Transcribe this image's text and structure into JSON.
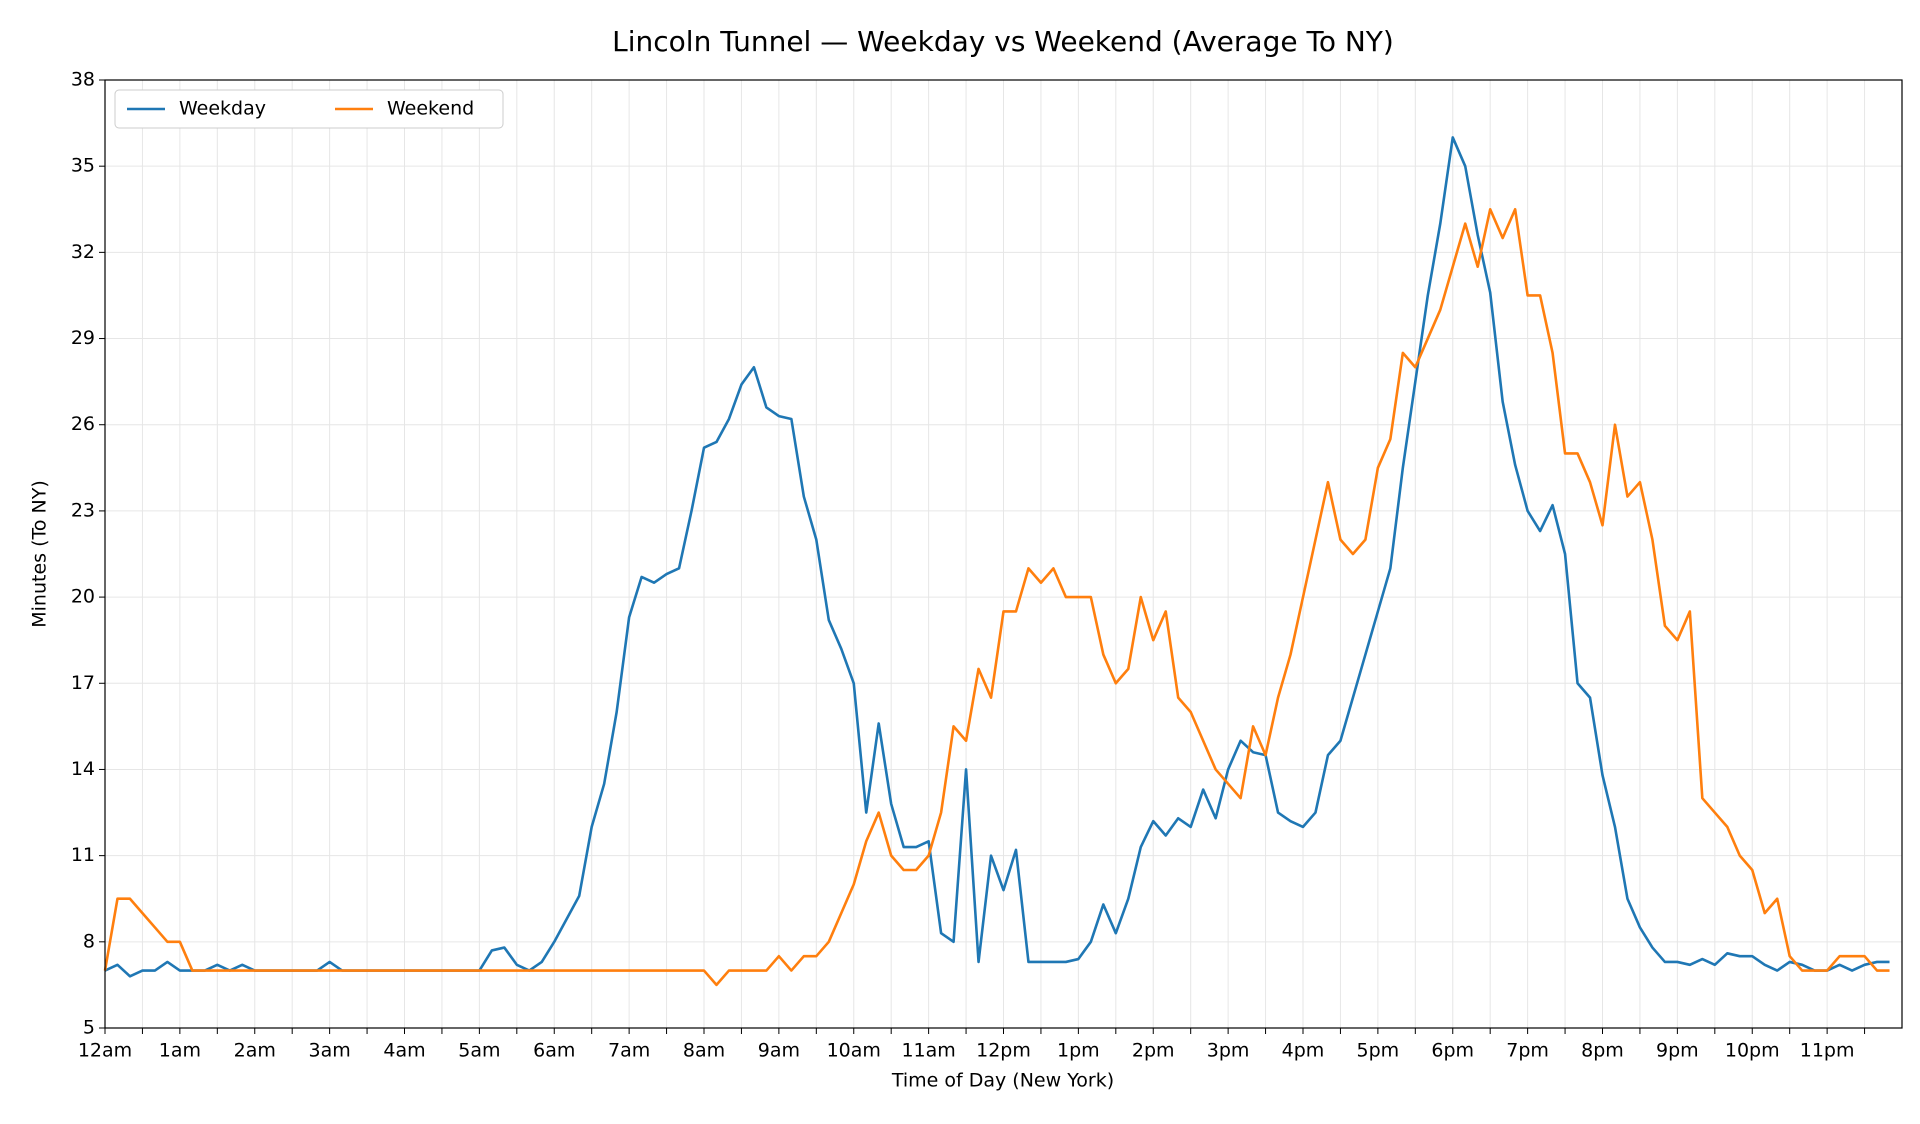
{
  "chart_data": {
    "type": "line",
    "title": "Lincoln Tunnel — Weekday vs Weekend (Average To NY)",
    "x_label": "Time of Day (New York)",
    "y_label": "Minutes (To NY)",
    "x": [
      0,
      10,
      20,
      30,
      40,
      50,
      60,
      70,
      80,
      90,
      100,
      110,
      120,
      130,
      140,
      150,
      160,
      170,
      180,
      190,
      200,
      210,
      220,
      230,
      240,
      250,
      260,
      270,
      280,
      290,
      300,
      310,
      320,
      330,
      340,
      350,
      360,
      370,
      380,
      390,
      400,
      410,
      420,
      430,
      440,
      450,
      460,
      470,
      480,
      490,
      500,
      510,
      520,
      530,
      540,
      550,
      560,
      570,
      580,
      590,
      600,
      610,
      620,
      630,
      640,
      650,
      660,
      670,
      680,
      690,
      700,
      710,
      720,
      730,
      740,
      750,
      760,
      770,
      780,
      790,
      800,
      810,
      820,
      830,
      840,
      850,
      860,
      870,
      880,
      890,
      900,
      910,
      920,
      930,
      940,
      950,
      960,
      970,
      980,
      990,
      1000,
      1010,
      1020,
      1030,
      1040,
      1050,
      1060,
      1070,
      1080,
      1090,
      1100,
      1110,
      1120,
      1130,
      1140,
      1150,
      1160,
      1170,
      1180,
      1190,
      1200,
      1210,
      1220,
      1230,
      1240,
      1250,
      1260,
      1270,
      1280,
      1290,
      1300,
      1310,
      1320,
      1330,
      1340,
      1350,
      1360,
      1370,
      1380,
      1390,
      1400,
      1410,
      1420,
      1430
    ],
    "series": [
      {
        "name": "Weekday",
        "color": "#1f77b4",
        "values": [
          7,
          7.2,
          6.8,
          7,
          7,
          7.3,
          7,
          7,
          7,
          7.2,
          7,
          7.2,
          7,
          7,
          7,
          7,
          7,
          7,
          7.3,
          7,
          7,
          7,
          7,
          7,
          7,
          7,
          7,
          7,
          7,
          7,
          7,
          7.7,
          7.8,
          7.2,
          7,
          7.3,
          8,
          8.8,
          9.6,
          12,
          13.5,
          16,
          19.3,
          20.7,
          20.5,
          20.8,
          21,
          23,
          25.2,
          25.4,
          26.2,
          27.4,
          28,
          26.6,
          26.3,
          26.2,
          23.5,
          22,
          19.2,
          18.2,
          17,
          12.5,
          15.6,
          12.8,
          11.3,
          11.3,
          11.5,
          8.3,
          8,
          14,
          7.3,
          11,
          9.8,
          11.2,
          7.3,
          7.3,
          7.3,
          7.3,
          7.4,
          8,
          9.3,
          8.3,
          9.5,
          11.3,
          12.2,
          11.7,
          12.3,
          12,
          13.3,
          12.3,
          14,
          15,
          14.6,
          14.5,
          12.5,
          12.2,
          12,
          12.5,
          14.5,
          15,
          16.5,
          18,
          19.5,
          21,
          24.5,
          27.5,
          30.5,
          33,
          36,
          35,
          32.6,
          30.6,
          26.8,
          24.6,
          23,
          22.3,
          23.2,
          21.5,
          17,
          16.5,
          13.8,
          12,
          9.5,
          8.5,
          7.8,
          7.3,
          7.3,
          7.2,
          7.4,
          7.2,
          7.6,
          7.5,
          7.5,
          7.2,
          7,
          7.3,
          7.2,
          7,
          7,
          7.2,
          7,
          7.2,
          7.3,
          7.3
        ]
      },
      {
        "name": "Weekend",
        "color": "#ff7f0e",
        "values": [
          7,
          9.5,
          9.5,
          9,
          8.5,
          8,
          8,
          7,
          7,
          7,
          7,
          7,
          7,
          7,
          7,
          7,
          7,
          7,
          7,
          7,
          7,
          7,
          7,
          7,
          7,
          7,
          7,
          7,
          7,
          7,
          7,
          7,
          7,
          7,
          7,
          7,
          7,
          7,
          7,
          7,
          7,
          7,
          7,
          7,
          7,
          7,
          7,
          7,
          7,
          6.5,
          7,
          7,
          7,
          7,
          7.5,
          7,
          7.5,
          7.5,
          8,
          9,
          10,
          11.5,
          12.5,
          11,
          10.5,
          10.5,
          11,
          12.5,
          15.5,
          15,
          17.5,
          16.5,
          19.5,
          19.5,
          21,
          20.5,
          21,
          20,
          20,
          20,
          18,
          17,
          17.5,
          20,
          18.5,
          19.5,
          16.5,
          16,
          15,
          14,
          13.5,
          13,
          15.5,
          14.5,
          16.5,
          18,
          20,
          22,
          24,
          22,
          21.5,
          22,
          24.5,
          25.5,
          28.5,
          28,
          29,
          30,
          31.5,
          33,
          31.5,
          33.5,
          32.5,
          33.5,
          30.5,
          30.5,
          28.5,
          25,
          25,
          24,
          22.5,
          26,
          23.5,
          24,
          22,
          19,
          18.5,
          19.5,
          13,
          12.5,
          12,
          11,
          10.5,
          9,
          9.5,
          7.5,
          7,
          7,
          7,
          7.5,
          7.5,
          7.5,
          7,
          7
        ]
      }
    ],
    "xlim": [
      0,
      1440
    ],
    "xticks": [
      {
        "value": 0,
        "label": "12am"
      },
      {
        "value": 60,
        "label": "1am"
      },
      {
        "value": 120,
        "label": "2am"
      },
      {
        "value": 180,
        "label": "3am"
      },
      {
        "value": 240,
        "label": "4am"
      },
      {
        "value": 300,
        "label": "5am"
      },
      {
        "value": 360,
        "label": "6am"
      },
      {
        "value": 420,
        "label": "7am"
      },
      {
        "value": 480,
        "label": "8am"
      },
      {
        "value": 540,
        "label": "9am"
      },
      {
        "value": 600,
        "label": "10am"
      },
      {
        "value": 660,
        "label": "11am"
      },
      {
        "value": 720,
        "label": "12pm"
      },
      {
        "value": 780,
        "label": "1pm"
      },
      {
        "value": 840,
        "label": "2pm"
      },
      {
        "value": 900,
        "label": "3pm"
      },
      {
        "value": 960,
        "label": "4pm"
      },
      {
        "value": 1020,
        "label": "5pm"
      },
      {
        "value": 1080,
        "label": "6pm"
      },
      {
        "value": 1140,
        "label": "7pm"
      },
      {
        "value": 1200,
        "label": "8pm"
      },
      {
        "value": 1260,
        "label": "9pm"
      },
      {
        "value": 1320,
        "label": "10pm"
      },
      {
        "value": 1380,
        "label": "11pm"
      }
    ],
    "xminorticks": [
      30,
      90,
      150,
      210,
      270,
      330,
      390,
      450,
      510,
      570,
      630,
      690,
      750,
      810,
      870,
      930,
      990,
      1050,
      1110,
      1170,
      1230,
      1290,
      1350,
      1410
    ],
    "ylim": [
      5,
      38
    ],
    "yticks": [
      5,
      8,
      11,
      14,
      17,
      20,
      23,
      26,
      29,
      32,
      35,
      38
    ],
    "grid": true,
    "legend": "upper-left"
  }
}
